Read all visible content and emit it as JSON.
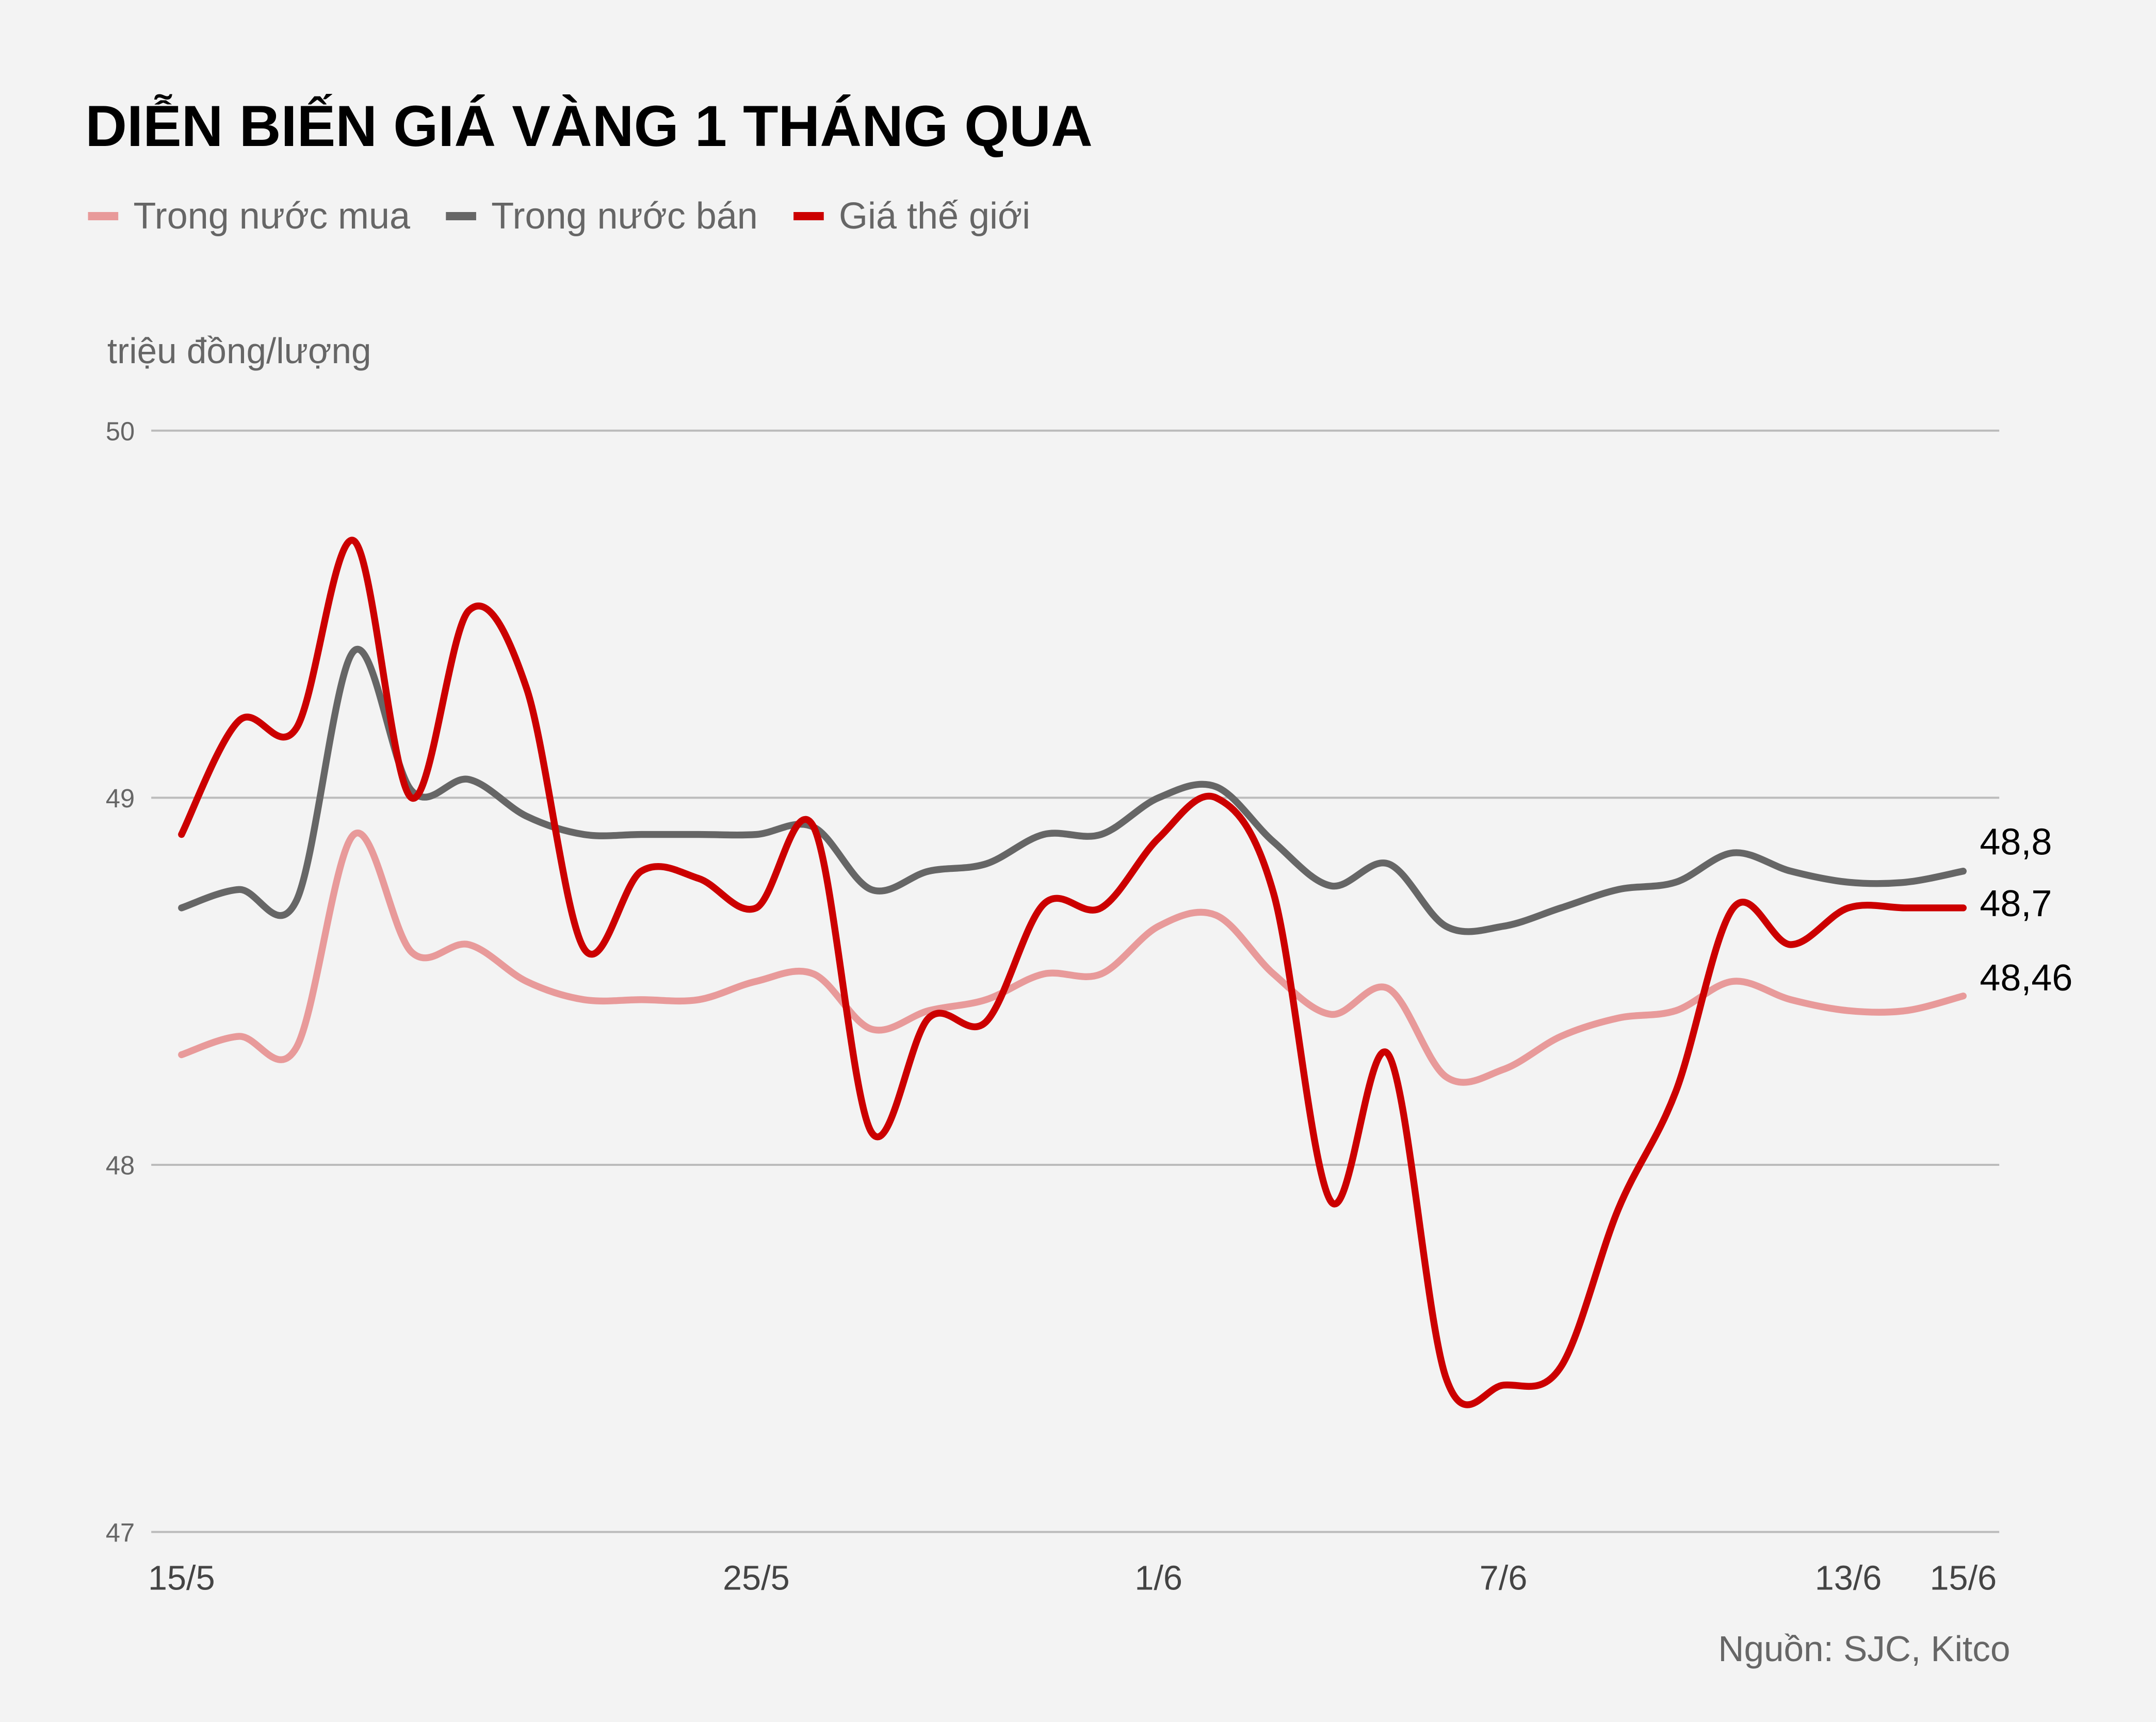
{
  "chart_data": {
    "type": "line",
    "title": "DIỄN BIẾN GIÁ VÀNG 1 THÁNG QUA",
    "ylabel": "triệu đồng/lượng",
    "source": "Nguồn: SJC, Kitco",
    "ylim": [
      47,
      50
    ],
    "yticks": [
      "47",
      "48",
      "49",
      "50"
    ],
    "ytick_values": [
      47,
      48,
      49,
      50
    ],
    "grid": true,
    "legend_position": "top-left",
    "xtick_labels": [
      {
        "day": 0,
        "label": "15/5"
      },
      {
        "day": 10,
        "label": "25/5"
      },
      {
        "day": 17,
        "label": "1/6"
      },
      {
        "day": 23,
        "label": "7/6"
      },
      {
        "day": 29,
        "label": "13/6"
      },
      {
        "day": 31,
        "label": "15/6"
      }
    ],
    "series": [
      {
        "name": "Trong nước mua",
        "color": "#e89a9a",
        "end_label": "48,46",
        "values": [
          48.3,
          48.35,
          48.32,
          48.9,
          48.58,
          48.6,
          48.5,
          48.45,
          48.45,
          48.45,
          48.5,
          48.52,
          48.37,
          48.42,
          48.45,
          48.52,
          48.52,
          48.65,
          48.68,
          48.52,
          48.41,
          48.48,
          48.24,
          48.26,
          48.35,
          48.4,
          48.42,
          48.5,
          48.45,
          48.42,
          48.42,
          48.46
        ]
      },
      {
        "name": "Trong nước bán",
        "color": "#666666",
        "end_label": "48,8",
        "values": [
          48.7,
          48.75,
          48.72,
          49.4,
          49.02,
          49.05,
          48.95,
          48.9,
          48.9,
          48.9,
          48.9,
          48.92,
          48.75,
          48.8,
          48.82,
          48.9,
          48.9,
          49.0,
          49.03,
          48.88,
          48.76,
          48.82,
          48.65,
          48.65,
          48.7,
          48.75,
          48.77,
          48.85,
          48.8,
          48.77,
          48.77,
          48.8
        ]
      },
      {
        "name": "Giá thế giới",
        "color": "#cc0000",
        "end_label": "48,7",
        "values": [
          48.9,
          49.21,
          49.19,
          49.7,
          49.0,
          49.51,
          49.3,
          48.59,
          48.8,
          48.78,
          48.7,
          48.92,
          48.09,
          48.4,
          48.39,
          48.71,
          48.7,
          48.89,
          49.0,
          48.74,
          47.9,
          48.3,
          47.42,
          47.4,
          47.45,
          47.88,
          48.2,
          48.7,
          48.6,
          48.7,
          48.7,
          48.7
        ]
      }
    ]
  }
}
